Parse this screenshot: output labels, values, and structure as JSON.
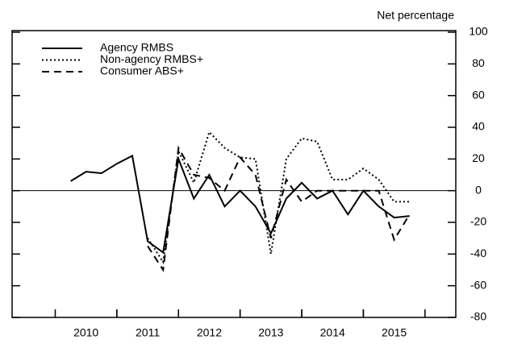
{
  "chart_data": {
    "type": "line",
    "y_axis_label": "Net percentage",
    "x": [
      2010.25,
      2010.5,
      2010.75,
      2011.0,
      2011.25,
      2011.5,
      2011.75,
      2012.0,
      2012.25,
      2012.5,
      2012.75,
      2013.0,
      2013.25,
      2013.5,
      2013.75,
      2014.0,
      2014.25,
      2014.5,
      2014.75,
      2015.0,
      2015.25,
      2015.5,
      2015.75
    ],
    "series": [
      {
        "name": "Agency RMBS",
        "color": "#000000",
        "dash": "solid",
        "values": [
          6,
          12,
          11,
          17,
          22,
          -32,
          -39,
          20,
          -5,
          10,
          -10,
          0,
          -10,
          -27,
          -5,
          5,
          -5,
          0,
          -15,
          0,
          -10,
          -17,
          -16
        ]
      },
      {
        "name": "Non-agency RMBS+",
        "color": "#000000",
        "dash": "dotted",
        "values": [
          null,
          null,
          null,
          null,
          null,
          -30,
          -45,
          25,
          5,
          37,
          27,
          21,
          20,
          -40,
          20,
          33,
          31,
          7,
          7,
          14,
          7,
          -7,
          -7
        ]
      },
      {
        "name": "Consumer ABS+",
        "color": "#000000",
        "dash": "dashed",
        "values": [
          null,
          null,
          null,
          null,
          null,
          -35,
          -50,
          27,
          10,
          8,
          0,
          21,
          10,
          -30,
          7,
          -7,
          0,
          0,
          0,
          0,
          0,
          -31,
          -15
        ]
      }
    ],
    "xlim": [
      2009.3,
      2016.5
    ],
    "xticks": [
      {
        "value": 2010.5,
        "label": "2010"
      },
      {
        "value": 2011.5,
        "label": "2011"
      },
      {
        "value": 2012.5,
        "label": "2012"
      },
      {
        "value": 2013.5,
        "label": "2013"
      },
      {
        "value": 2014.5,
        "label": "2014"
      },
      {
        "value": 2015.5,
        "label": "2015"
      }
    ],
    "ylim": [
      -80,
      100
    ],
    "yticks": [
      -80,
      -60,
      -40,
      -20,
      0,
      20,
      40,
      60,
      80,
      100
    ],
    "legend": "upper left"
  }
}
